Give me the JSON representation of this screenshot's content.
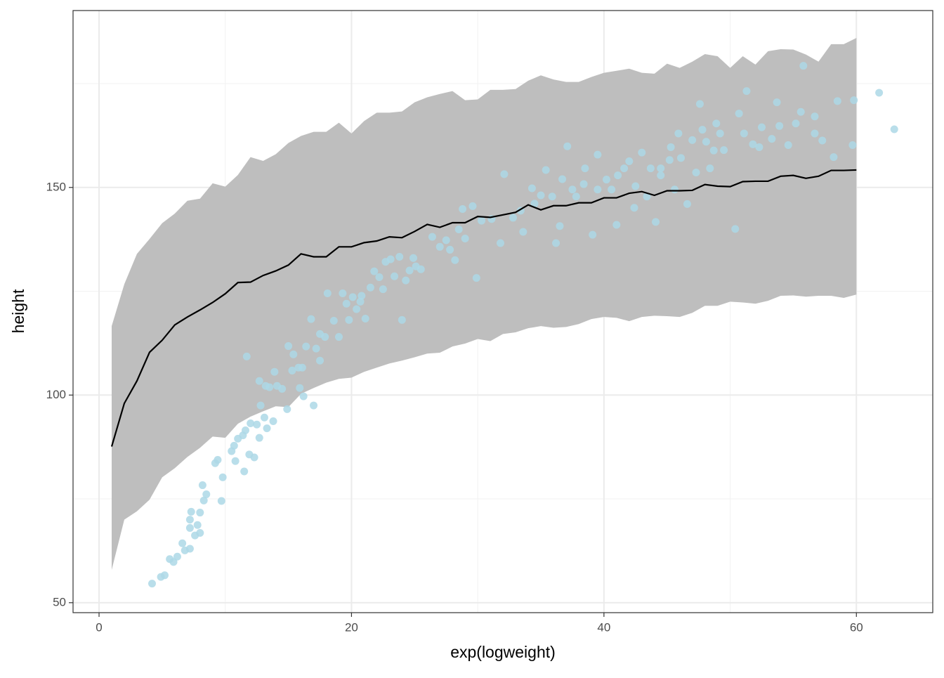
{
  "chart_data": {
    "type": "scatter",
    "x_label": "exp(logweight)",
    "y_label": "height",
    "xlim": [
      -2.06,
      66.05
    ],
    "ylim": [
      47.6,
      192.6
    ],
    "xticks": [
      0,
      20,
      40,
      60
    ],
    "yticks": [
      50,
      100,
      150
    ],
    "xminorticks": [
      10,
      30,
      50
    ],
    "yminorticks": [
      75,
      125,
      175
    ],
    "grid": true,
    "ribbon": {
      "color": "#bebebe",
      "x": [
        1,
        2,
        3,
        4,
        5,
        6,
        7,
        8,
        9,
        10,
        11,
        12,
        13,
        14,
        15,
        16,
        17,
        18,
        19,
        20,
        21,
        22,
        23,
        24,
        25,
        26,
        27,
        28,
        29,
        30,
        31,
        32,
        33,
        34,
        35,
        36,
        37,
        38,
        39,
        40,
        41,
        42,
        43,
        44,
        45,
        46,
        47,
        48,
        49,
        50,
        51,
        52,
        53,
        54,
        55,
        56,
        57,
        58,
        59,
        60
      ],
      "upper": [
        116.6,
        126.7,
        134,
        137.6,
        141.4,
        143.7,
        146.8,
        147.3,
        151,
        150.2,
        153,
        157.3,
        156.4,
        158,
        160.7,
        162.4,
        163.4,
        163.4,
        165.6,
        163,
        166,
        168,
        168,
        168.3,
        170.5,
        171.7,
        172.5,
        173.2,
        171,
        171.2,
        173.5,
        173.5,
        173.7,
        175.7,
        177,
        176,
        175.4,
        175.4,
        176.6,
        177.6,
        178.1,
        178.6,
        177.6,
        177.4,
        179.8,
        178.8,
        180.3,
        182.1,
        181.6,
        178.8,
        181.6,
        179.6,
        182.8,
        183.3,
        183.2,
        182,
        180.3,
        184.5,
        184.5,
        186
      ],
      "lower": [
        57.9,
        70,
        72,
        74.8,
        80.2,
        82.4,
        85.1,
        87.3,
        90,
        89.7,
        93.1,
        94.8,
        96.1,
        97.3,
        97.1,
        100.3,
        101.7,
        103,
        103.9,
        104.2,
        105.6,
        106.6,
        107.6,
        108.3,
        109.1,
        110,
        110.2,
        111.7,
        112.4,
        113.5,
        113,
        114.7,
        115.1,
        116.1,
        116.6,
        116.2,
        116.4,
        117.1,
        118.3,
        118.8,
        118.6,
        117.8,
        118.8,
        119.1,
        119,
        118.8,
        119.8,
        121.5,
        121.5,
        122.5,
        122.3,
        122,
        122.7,
        123.9,
        124,
        123.7,
        123.9,
        123.9,
        123.4,
        124.2
      ]
    },
    "line": {
      "color": "#000000",
      "x": [
        1,
        2,
        3,
        4,
        5,
        6,
        7,
        8,
        9,
        10,
        11,
        12,
        13,
        14,
        15,
        16,
        17,
        18,
        19,
        20,
        21,
        22,
        23,
        24,
        25,
        26,
        27,
        28,
        29,
        30,
        31,
        32,
        33,
        34,
        35,
        36,
        37,
        38,
        39,
        40,
        41,
        42,
        43,
        44,
        45,
        46,
        47,
        48,
        49,
        50,
        51,
        52,
        53,
        54,
        55,
        56,
        57,
        58,
        59,
        60
      ],
      "values": [
        87.6,
        98,
        103.4,
        110.3,
        113.2,
        116.9,
        118.8,
        120.5,
        122.3,
        124.4,
        127.1,
        127.2,
        128.8,
        129.9,
        131.3,
        134,
        133.3,
        133.3,
        135.7,
        135.7,
        136.7,
        137.1,
        138.1,
        137.9,
        139.4,
        141.1,
        140.4,
        141.5,
        141.5,
        143,
        142.8,
        143.4,
        144,
        145.8,
        144.6,
        145.6,
        145.6,
        146.3,
        146.3,
        147.5,
        147.5,
        148.6,
        149,
        148.1,
        149.2,
        149.2,
        149.3,
        150.7,
        150.3,
        150.2,
        151.4,
        151.5,
        151.5,
        152.7,
        152.9,
        152.2,
        152.7,
        154.1,
        154.1,
        154.2
      ]
    },
    "points": {
      "color": "#add8e6",
      "x": [
        4.2,
        4.9,
        5.2,
        5.6,
        5.9,
        6.2,
        6.6,
        6.8,
        7.2,
        7.3,
        7.2,
        7.2,
        7.6,
        7.8,
        8.0,
        8.0,
        8.2,
        8.3,
        8.5,
        9.2,
        9.4,
        9.7,
        9.8,
        10.5,
        10.7,
        10.8,
        11.0,
        11.4,
        11.5,
        11.6,
        11.7,
        11.9,
        12.0,
        12.3,
        12.5,
        12.7,
        12.7,
        12.8,
        13.1,
        13.2,
        13.3,
        13.5,
        13.8,
        13.9,
        14.1,
        14.5,
        14.9,
        15.0,
        15.3,
        15.4,
        15.8,
        15.9,
        16.1,
        16.2,
        16.4,
        16.8,
        17.0,
        17.2,
        17.5,
        17.5,
        17.9,
        18.1,
        18.6,
        19.0,
        19.3,
        19.6,
        19.8,
        20.1,
        20.4,
        20.7,
        20.8,
        21.1,
        21.5,
        21.8,
        22.2,
        22.5,
        22.7,
        23.1,
        23.4,
        23.8,
        24.0,
        24.3,
        24.6,
        24.9,
        25.1,
        25.5,
        26.4,
        27.0,
        27.5,
        27.8,
        28.2,
        28.5,
        28.8,
        29.0,
        29.6,
        29.9,
        30.3,
        31.1,
        31.8,
        32.1,
        32.8,
        33.6,
        34.3,
        35.0,
        35.4,
        36.2,
        36.5,
        37.1,
        37.8,
        38.5,
        39.1,
        39.5,
        40.2,
        41.0,
        41.6,
        42.4,
        43.0,
        43.4,
        44.1,
        44.5,
        45.2,
        45.9,
        46.6,
        47.3,
        47.6,
        48.1,
        48.9,
        49.5,
        50.4,
        50.7,
        51.3,
        51.8,
        52.5,
        53.3,
        53.7,
        54.6,
        55.2,
        55.8,
        56.7,
        57.3,
        58.2,
        58.5,
        59.7,
        59.8,
        61.8,
        63.0,
        44.5,
        45.3,
        46.1,
        47.0,
        47.8,
        48.7,
        49.2,
        41.1,
        42.0,
        40.6,
        39.5,
        38.4,
        37.5,
        36.7,
        35.9,
        34.5,
        33.4,
        51.1,
        52.3,
        53.9,
        55.6,
        56.7,
        43.7,
        42.5,
        45.6,
        48.4
      ],
      "y": [
        54.6,
        56.2,
        56.6,
        60.5,
        59.8,
        61.1,
        64.3,
        62.6,
        63.0,
        71.9,
        68,
        70,
        66.2,
        68.7,
        71.7,
        66.8,
        78.3,
        74.6,
        76.1,
        83.6,
        84.4,
        74.5,
        80.2,
        86.5,
        87.8,
        84.1,
        89.5,
        90.3,
        81.6,
        91.5,
        109.3,
        85.7,
        93.2,
        85.0,
        92.9,
        103.4,
        89.7,
        97.5,
        94.6,
        102.2,
        92,
        101.9,
        93.7,
        105.6,
        102.2,
        101.5,
        96.6,
        111.8,
        105.9,
        109.8,
        106.6,
        101.7,
        106.6,
        99.7,
        111.7,
        118.3,
        97.5,
        111.2,
        114.7,
        108.3,
        114,
        124.5,
        117.9,
        114,
        124.5,
        122,
        118.1,
        123.6,
        120.7,
        122.5,
        123.9,
        118.4,
        125.9,
        129.8,
        128.4,
        125.5,
        132.1,
        132.7,
        128.6,
        133.3,
        118.1,
        127.6,
        130,
        133,
        131,
        130.3,
        138.1,
        135.7,
        137.3,
        135.0,
        132.5,
        139.9,
        144.8,
        137.7,
        145.5,
        128.2,
        142.0,
        142.4,
        136.6,
        153.2,
        142.7,
        139.3,
        149.8,
        148.1,
        154.2,
        136.6,
        140.7,
        159.9,
        147.8,
        154.6,
        138.6,
        157.9,
        151.9,
        141.0,
        154.6,
        145.1,
        158.4,
        147.8,
        141.7,
        152.9,
        156.6,
        163.0,
        146.0,
        153.6,
        170.1,
        161.0,
        165.4,
        159.0,
        140.0,
        167.8,
        173.2,
        160.4,
        164.5,
        161.7,
        170.5,
        160.2,
        165.4,
        179.3,
        167.1,
        161.3,
        157.3,
        170.8,
        160.2,
        171.0,
        172.8,
        164.0,
        154.6,
        159.7,
        157.1,
        161.4,
        163.9,
        158.9,
        163.0,
        152.9,
        156.3,
        149.5,
        149.5,
        150.8,
        149.5,
        152.0,
        147.8,
        146.1,
        144.4,
        163.0,
        159.7,
        164.8,
        168.2,
        163.0,
        154.6,
        150.3,
        149.5,
        154.6
      ]
    }
  }
}
